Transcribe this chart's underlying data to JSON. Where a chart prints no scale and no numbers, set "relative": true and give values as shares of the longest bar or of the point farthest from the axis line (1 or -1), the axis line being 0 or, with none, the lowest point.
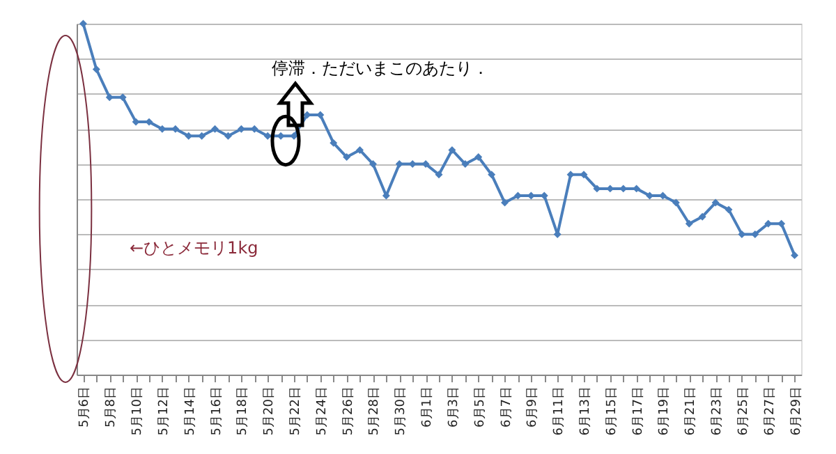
{
  "chart_data": {
    "type": "line",
    "relative": true,
    "grid": "y",
    "marker": "diamond",
    "line_style": "solid",
    "categories": [
      "5月6日",
      null,
      "5月8日",
      null,
      "5月10日",
      null,
      "5月12日",
      null,
      "5月14日",
      null,
      "5月16日",
      null,
      "5月18日",
      null,
      "5月20日",
      null,
      "5月22日",
      null,
      "5月24日",
      null,
      "5月26日",
      null,
      "5月28日",
      null,
      "5月30日",
      null,
      "6月1日",
      null,
      "6月3日",
      null,
      "6月5日",
      null,
      "6月7日",
      null,
      "6月9日",
      null,
      "6月11日",
      null,
      "6月13日",
      null,
      "6月15日",
      null,
      "6月17日",
      null,
      "6月19日",
      null,
      "6月21日",
      null,
      "6月23日",
      null,
      "6月25日",
      null,
      "6月27日",
      null,
      "6月29日"
    ],
    "series": [
      {
        "color": "#4a7ebb",
        "values": [
          1,
          0.87,
          0.79,
          0.79,
          0.72,
          0.72,
          0.7,
          0.7,
          0.68,
          0.68,
          0.7,
          0.68,
          0.7,
          0.7,
          0.68,
          0.68,
          0.68,
          0.74,
          0.74,
          0.66,
          0.62,
          0.64,
          0.6,
          0.51,
          0.6,
          0.6,
          0.6,
          0.57,
          0.64,
          0.6,
          0.62,
          0.57,
          0.49,
          0.51,
          0.51,
          0.51,
          0.4,
          0.57,
          0.57,
          0.53,
          0.53,
          0.53,
          0.53,
          0.51,
          0.51,
          0.49,
          0.43,
          0.45,
          0.49,
          0.47,
          0.4,
          0.4,
          0.43,
          0.43,
          0.34
        ]
      }
    ],
    "annotations": [
      "停滞．ただいまこのあたり．",
      "←ひとメモリ1kg"
    ]
  }
}
